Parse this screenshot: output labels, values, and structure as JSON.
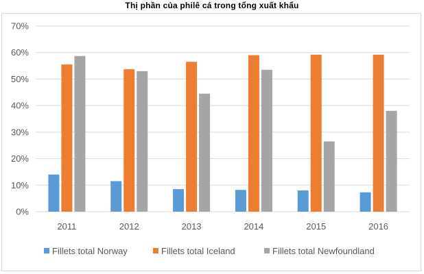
{
  "chart_data": {
    "type": "bar",
    "title": "Thị phần của philê cá trong tổng xuất khẩu",
    "categories": [
      "2011",
      "2012",
      "2013",
      "2014",
      "2015",
      "2016"
    ],
    "series": [
      {
        "name": "Fillets total Norway",
        "color": "#5b9bd5",
        "values": [
          14,
          11.5,
          8.5,
          8.2,
          8,
          7.3
        ]
      },
      {
        "name": "Fillets total Iceland",
        "color": "#ed7d31",
        "values": [
          55.5,
          53.7,
          56.5,
          59,
          59.2,
          59.2
        ]
      },
      {
        "name": "Fillets total Newfoundland",
        "color": "#a5a5a5",
        "values": [
          58.7,
          53,
          44.5,
          53.5,
          26.5,
          38
        ]
      }
    ],
    "ylim": [
      0,
      70
    ],
    "yticks": [
      0,
      10,
      20,
      30,
      40,
      50,
      60,
      70
    ],
    "ytick_labels": [
      "0%",
      "10%",
      "20%",
      "30%",
      "40%",
      "50%",
      "60%",
      "70%"
    ],
    "xlabel": "",
    "ylabel": "",
    "grid": true,
    "legend_position": "bottom",
    "gridline_color": "#d9d9d9"
  }
}
